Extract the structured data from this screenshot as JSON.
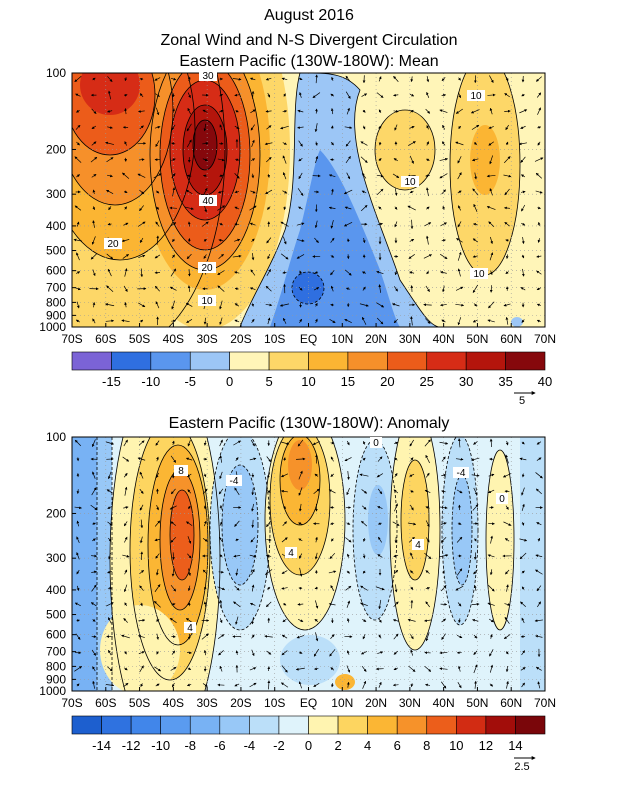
{
  "titles": {
    "line1": "August 2016",
    "line2": "Zonal Wind and N-S Divergent Circulation",
    "line3": "Eastern Pacific (130W-180W): Mean",
    "panel2": "Eastern Pacific (130W-180W): Anomaly"
  },
  "chart_data": [
    {
      "type": "heatmap",
      "title": "Eastern Pacific (130W-180W): Mean",
      "x_ticks": [
        "70S",
        "60S",
        "50S",
        "40S",
        "30S",
        "20S",
        "10S",
        "EQ",
        "10N",
        "20N",
        "30N",
        "40N",
        "50N",
        "60N",
        "70N"
      ],
      "y_ticks": [
        "100",
        "200",
        "300",
        "400",
        "500",
        "600",
        "700",
        "800",
        "900",
        "1000"
      ],
      "y_axis": "pressure (hPa), log scale, 100 at top",
      "colorbar": {
        "labels": [
          "-15",
          "-10",
          "-5",
          "0",
          "5",
          "10",
          "15",
          "20",
          "25",
          "30",
          "35",
          "40"
        ],
        "colors": [
          "#7b63d6",
          "#2f6fe0",
          "#5a96ee",
          "#9cc6f6",
          "#fff5b8",
          "#fdd768",
          "#fbb533",
          "#f6902a",
          "#ec5c1a",
          "#d62c16",
          "#b4150c",
          "#86080c"
        ]
      },
      "contour_labels": [
        "10",
        "10",
        "10",
        "10",
        "20",
        "20",
        "30",
        "40"
      ],
      "vector_reference": "5"
    },
    {
      "type": "heatmap",
      "title": "Eastern Pacific (130W-180W): Anomaly",
      "x_ticks": [
        "70S",
        "60S",
        "50S",
        "40S",
        "30S",
        "20S",
        "10S",
        "EQ",
        "10N",
        "20N",
        "30N",
        "40N",
        "50N",
        "60N",
        "70N"
      ],
      "y_ticks": [
        "100",
        "200",
        "300",
        "400",
        "500",
        "600",
        "700",
        "800",
        "900",
        "1000"
      ],
      "y_axis": "pressure (hPa), log scale, 100 at top",
      "colorbar": {
        "labels": [
          "-14",
          "-12",
          "-10",
          "-8",
          "-6",
          "-4",
          "-2",
          "0",
          "2",
          "4",
          "6",
          "8",
          "10",
          "12",
          "14"
        ],
        "colors": [
          "#1d5fcf",
          "#2f72e0",
          "#4186ea",
          "#5a9bf0",
          "#78b2f4",
          "#98c8f7",
          "#bbdff9",
          "#dff3fb",
          "#fff4b0",
          "#fdd560",
          "#fbb634",
          "#f6922a",
          "#ec5e1b",
          "#d22c13",
          "#a20d0a",
          "#7a060a"
        ]
      },
      "contour_labels": [
        "8",
        "-4",
        "0",
        "4",
        "4",
        "4",
        "-4",
        "0"
      ],
      "vector_reference": "2.5"
    }
  ]
}
